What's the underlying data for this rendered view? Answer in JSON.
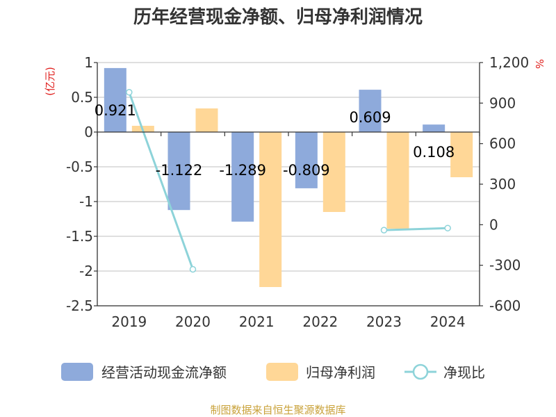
{
  "chart_data": {
    "type": "bar",
    "title": "历年经营现金净额、归母净利润情况",
    "categories": [
      "2019",
      "2020",
      "2021",
      "2022",
      "2023",
      "2024"
    ],
    "series": [
      {
        "name": "经营活动现金流净额",
        "type": "bar",
        "axis": "left",
        "color": "#8eaadb",
        "values": [
          0.921,
          -1.122,
          -1.289,
          -0.809,
          0.609,
          0.108
        ],
        "labels": [
          "0.921",
          "-1.122",
          "-1.289",
          "-0.809",
          "0.609",
          "0.108"
        ]
      },
      {
        "name": "归母净利润",
        "type": "bar",
        "axis": "left",
        "color": "#ffd797",
        "values": [
          0.09,
          0.34,
          -2.23,
          -1.15,
          -1.39,
          -0.65
        ]
      },
      {
        "name": "净现比",
        "type": "line",
        "axis": "right",
        "color": "#8dd3d9",
        "values": [
          980,
          -330,
          null,
          null,
          -40,
          -25
        ]
      }
    ],
    "y_left": {
      "unit": "(亿元)",
      "min": -2.5,
      "max": 1,
      "ticks": [
        "1",
        "0.5",
        "0",
        "-0.5",
        "-1",
        "-1.5",
        "-2",
        "-2.5"
      ]
    },
    "y_right": {
      "unit": "%",
      "min": -600,
      "max": 1200,
      "ticks": [
        "1,200",
        "900",
        "600",
        "300",
        "0",
        "-300",
        "-600"
      ]
    },
    "grid": true,
    "legend": "bottom"
  },
  "source": "制图数据来自恒生聚源数据库"
}
